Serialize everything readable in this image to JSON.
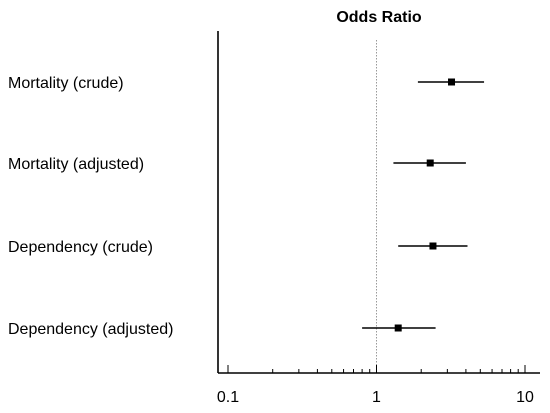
{
  "chart_data": {
    "type": "forest",
    "title": "Odds Ratio",
    "xscale": "log",
    "xlim": [
      0.1,
      10
    ],
    "xticks": [
      "0.1",
      "1",
      "10"
    ],
    "reference_line": 1,
    "rows": [
      {
        "label": "Mortality (crude)",
        "or": 3.2,
        "ci_low": 1.9,
        "ci_high": 5.3
      },
      {
        "label": "Mortality (adjusted)",
        "or": 2.3,
        "ci_low": 1.3,
        "ci_high": 4.0
      },
      {
        "label": "Dependency (crude)",
        "or": 2.4,
        "ci_low": 1.4,
        "ci_high": 4.1
      },
      {
        "label": "Dependency (adjusted)",
        "or": 1.4,
        "ci_low": 0.8,
        "ci_high": 2.5
      }
    ],
    "colors": {
      "marker": "#000000",
      "axis": "#000000",
      "reference_line": "#999999"
    }
  }
}
